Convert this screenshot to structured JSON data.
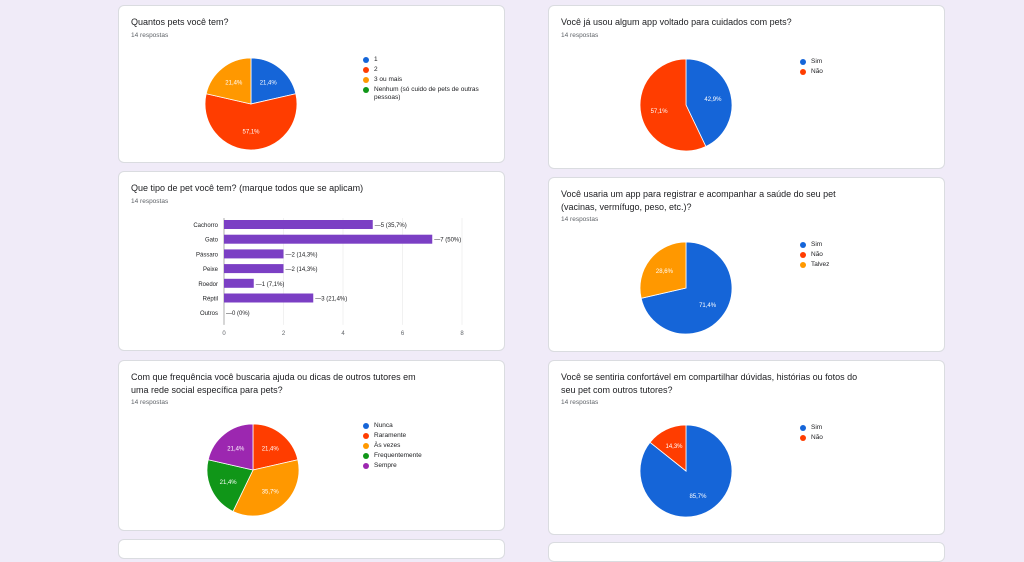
{
  "colors": {
    "blue": "#1565d8",
    "red": "#ff3d00",
    "orange": "#ff9800",
    "green": "#109618",
    "purple": "#9c27b0",
    "bar": "#7b3fc4"
  },
  "cards": {
    "q1": {
      "title": "Quantos pets você tem?",
      "responses": "14 respostas"
    },
    "q2": {
      "title": "Que tipo de pet você tem? (marque todos que se aplicam)",
      "responses": "14 respostas"
    },
    "q3": {
      "title": "Com que frequência você buscaria ajuda ou dicas de outros tutores em uma rede social específica para pets?",
      "responses": "14 respostas"
    },
    "q4": {
      "title": "Você já usou algum app voltado para cuidados com pets?",
      "responses": "14 respostas"
    },
    "q5": {
      "title": "Você usaria um app para registrar e acompanhar a saúde do seu pet (vacinas, vermífugo, peso, etc.)?",
      "responses": "14 respostas"
    },
    "q6": {
      "title": "Você se sentiria confortável em compartilhar dúvidas, histórias ou fotos do seu pet com outros tutores?",
      "responses": "14 respostas"
    }
  },
  "chart_data": [
    {
      "id": "q1",
      "type": "pie",
      "title": "Quantos pets você tem?",
      "slices": [
        {
          "label": "1",
          "value": 21.4,
          "display": "21,4%",
          "color": "#1565d8"
        },
        {
          "label": "2",
          "value": 57.1,
          "display": "57,1%",
          "color": "#ff3d00"
        },
        {
          "label": "3 ou mais",
          "value": 21.4,
          "display": "21,4%",
          "color": "#ff9800"
        },
        {
          "label": "Nenhum (só cuido de pets de outras pessoas)",
          "value": 0,
          "display": "",
          "color": "#109618"
        }
      ]
    },
    {
      "id": "q2",
      "type": "bar",
      "orientation": "horizontal",
      "title": "Que tipo de pet você tem? (marque todos que se aplicam)",
      "categories": [
        "Cachorro",
        "Gato",
        "Pássaro",
        "Peixe",
        "Roedor",
        "Réptil",
        "Outros"
      ],
      "values": [
        5,
        7,
        2,
        2,
        1,
        3,
        0
      ],
      "labels": [
        "5 (35,7%)",
        "7 (50%)",
        "2 (14,3%)",
        "2 (14,3%)",
        "1 (7,1%)",
        "3 (21,4%)",
        "0 (0%)"
      ],
      "xlim": [
        0,
        8
      ],
      "xticks": [
        0,
        2,
        4,
        6,
        8
      ]
    },
    {
      "id": "q3",
      "type": "pie",
      "title": "Com que frequência você buscaria ajuda ou dicas de outros tutores em uma rede social específica para pets?",
      "slices": [
        {
          "label": "Nunca",
          "value": 0,
          "display": "",
          "color": "#1565d8"
        },
        {
          "label": "Raramente",
          "value": 21.4,
          "display": "21,4%",
          "color": "#ff3d00"
        },
        {
          "label": "Às vezes",
          "value": 35.7,
          "display": "35,7%",
          "color": "#ff9800"
        },
        {
          "label": "Frequentemente",
          "value": 21.4,
          "display": "21,4%",
          "color": "#109618"
        },
        {
          "label": "Sempre",
          "value": 21.4,
          "display": "21,4%",
          "color": "#9c27b0"
        }
      ]
    },
    {
      "id": "q4",
      "type": "pie",
      "title": "Você já usou algum app voltado para cuidados com pets?",
      "slices": [
        {
          "label": "Sim",
          "value": 42.9,
          "display": "42,9%",
          "color": "#1565d8"
        },
        {
          "label": "Não",
          "value": 57.1,
          "display": "57,1%",
          "color": "#ff3d00"
        }
      ]
    },
    {
      "id": "q5",
      "type": "pie",
      "title": "Você usaria um app para registrar e acompanhar a saúde do seu pet (vacinas, vermífugo, peso, etc.)?",
      "slices": [
        {
          "label": "Sim",
          "value": 71.4,
          "display": "71,4%",
          "color": "#1565d8"
        },
        {
          "label": "Não",
          "value": 0,
          "display": "",
          "color": "#ff3d00"
        },
        {
          "label": "Talvez",
          "value": 28.6,
          "display": "28,6%",
          "color": "#ff9800"
        }
      ]
    },
    {
      "id": "q6",
      "type": "pie",
      "title": "Você se sentiria confortável em compartilhar dúvidas, histórias ou fotos do seu pet com outros tutores?",
      "slices": [
        {
          "label": "Sim",
          "value": 85.7,
          "display": "85,7%",
          "color": "#1565d8"
        },
        {
          "label": "Não",
          "value": 14.3,
          "display": "14,3%",
          "color": "#ff3d00"
        }
      ]
    }
  ]
}
